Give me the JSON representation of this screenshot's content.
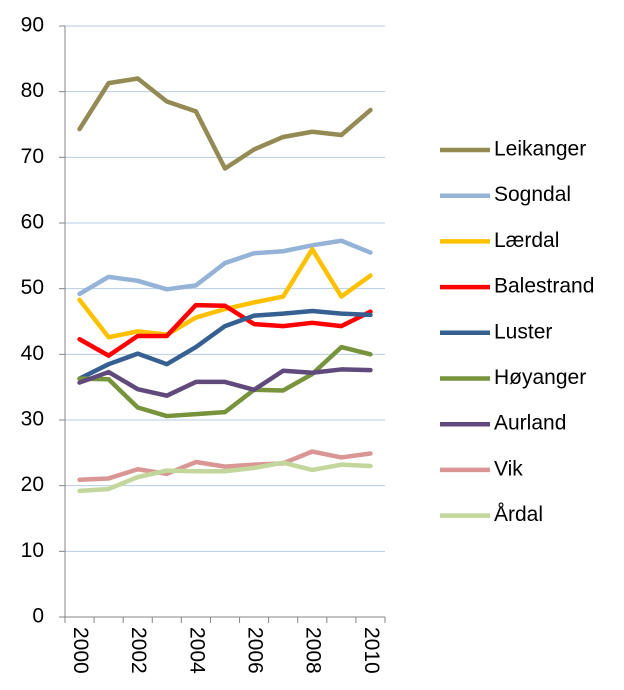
{
  "chart_data": {
    "type": "line",
    "categories": [
      "2000",
      null,
      "2002",
      null,
      "2004",
      null,
      "2006",
      null,
      "2008",
      null,
      "2010"
    ],
    "ylim": [
      0,
      90
    ],
    "yticks": [
      0,
      10,
      20,
      30,
      40,
      50,
      60,
      70,
      80,
      90
    ],
    "grid": true,
    "legend": "right",
    "series": [
      {
        "name": "Leikanger",
        "color": "#948a54",
        "values": [
          74.3,
          81.3,
          82.0,
          78.5,
          77.0,
          68.3,
          71.2,
          73.1,
          73.9,
          73.4,
          77.2
        ]
      },
      {
        "name": "Sogndal",
        "color": "#95b3d7",
        "values": [
          49.2,
          51.8,
          51.2,
          49.9,
          50.5,
          53.9,
          55.4,
          55.7,
          56.6,
          57.3,
          55.5
        ]
      },
      {
        "name": "Lærdal",
        "color": "#ffc000",
        "values": [
          48.3,
          42.6,
          43.5,
          43.0,
          45.6,
          46.9,
          47.9,
          48.8,
          56.0,
          48.8,
          52.0
        ]
      },
      {
        "name": "Balestrand",
        "color": "#ff0000",
        "values": [
          42.3,
          39.8,
          42.8,
          42.8,
          47.5,
          47.4,
          44.6,
          44.3,
          44.8,
          44.3,
          46.5
        ]
      },
      {
        "name": "Luster",
        "color": "#376092",
        "values": [
          36.3,
          38.5,
          40.1,
          38.5,
          41.1,
          44.3,
          45.9,
          46.2,
          46.6,
          46.2,
          46.0
        ]
      },
      {
        "name": "Høyanger",
        "color": "#77933c",
        "values": [
          36.3,
          36.2,
          31.9,
          30.6,
          30.9,
          31.2,
          34.6,
          34.5,
          37.0,
          41.1,
          40.0
        ]
      },
      {
        "name": "Aurland",
        "color": "#604a7b",
        "values": [
          35.7,
          37.3,
          34.7,
          33.7,
          35.8,
          35.8,
          34.6,
          37.5,
          37.2,
          37.7,
          37.6
        ]
      },
      {
        "name": "Vik",
        "color": "#d99694",
        "values": [
          20.9,
          21.1,
          22.5,
          21.8,
          23.6,
          22.9,
          23.2,
          23.4,
          25.2,
          24.3,
          24.9
        ]
      },
      {
        "name": "Årdal",
        "color": "#c3d69b",
        "values": [
          19.2,
          19.5,
          21.3,
          22.3,
          22.2,
          22.2,
          22.7,
          23.5,
          22.4,
          23.2,
          23.0
        ]
      }
    ]
  }
}
